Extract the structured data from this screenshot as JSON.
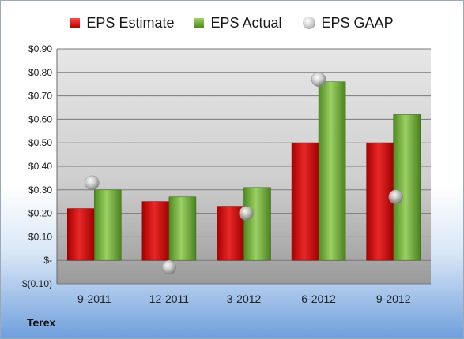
{
  "chart_data": {
    "type": "bar",
    "categories": [
      "9-2011",
      "12-2011",
      "3-2012",
      "6-2012",
      "9-2012"
    ],
    "series": [
      {
        "name": "EPS Estimate",
        "type": "bar",
        "color": "#d41c1c",
        "values": [
          0.22,
          0.25,
          0.23,
          0.5,
          0.5
        ]
      },
      {
        "name": "EPS Actual",
        "type": "bar",
        "color": "#7fb543",
        "values": [
          0.3,
          0.27,
          0.31,
          0.76,
          0.62
        ]
      },
      {
        "name": "EPS GAAP",
        "type": "scatter",
        "color": "#b8b8b8",
        "values": [
          0.33,
          -0.03,
          0.2,
          0.77,
          0.27
        ]
      }
    ],
    "ylim": [
      -0.1,
      0.9
    ],
    "yticks": [
      0.9,
      0.8,
      0.7,
      0.6,
      0.5,
      0.4,
      0.3,
      0.2,
      0.1,
      0.0,
      -0.1
    ],
    "ytick_labels": [
      "$0.90",
      "$0.80",
      "$0.70",
      "$0.60",
      "$0.50",
      "$0.40",
      "$0.30",
      "$0.20",
      "$0.10",
      "$-",
      "$(0.10)"
    ],
    "grid": true,
    "legend_position": "top",
    "company": "Terex"
  }
}
